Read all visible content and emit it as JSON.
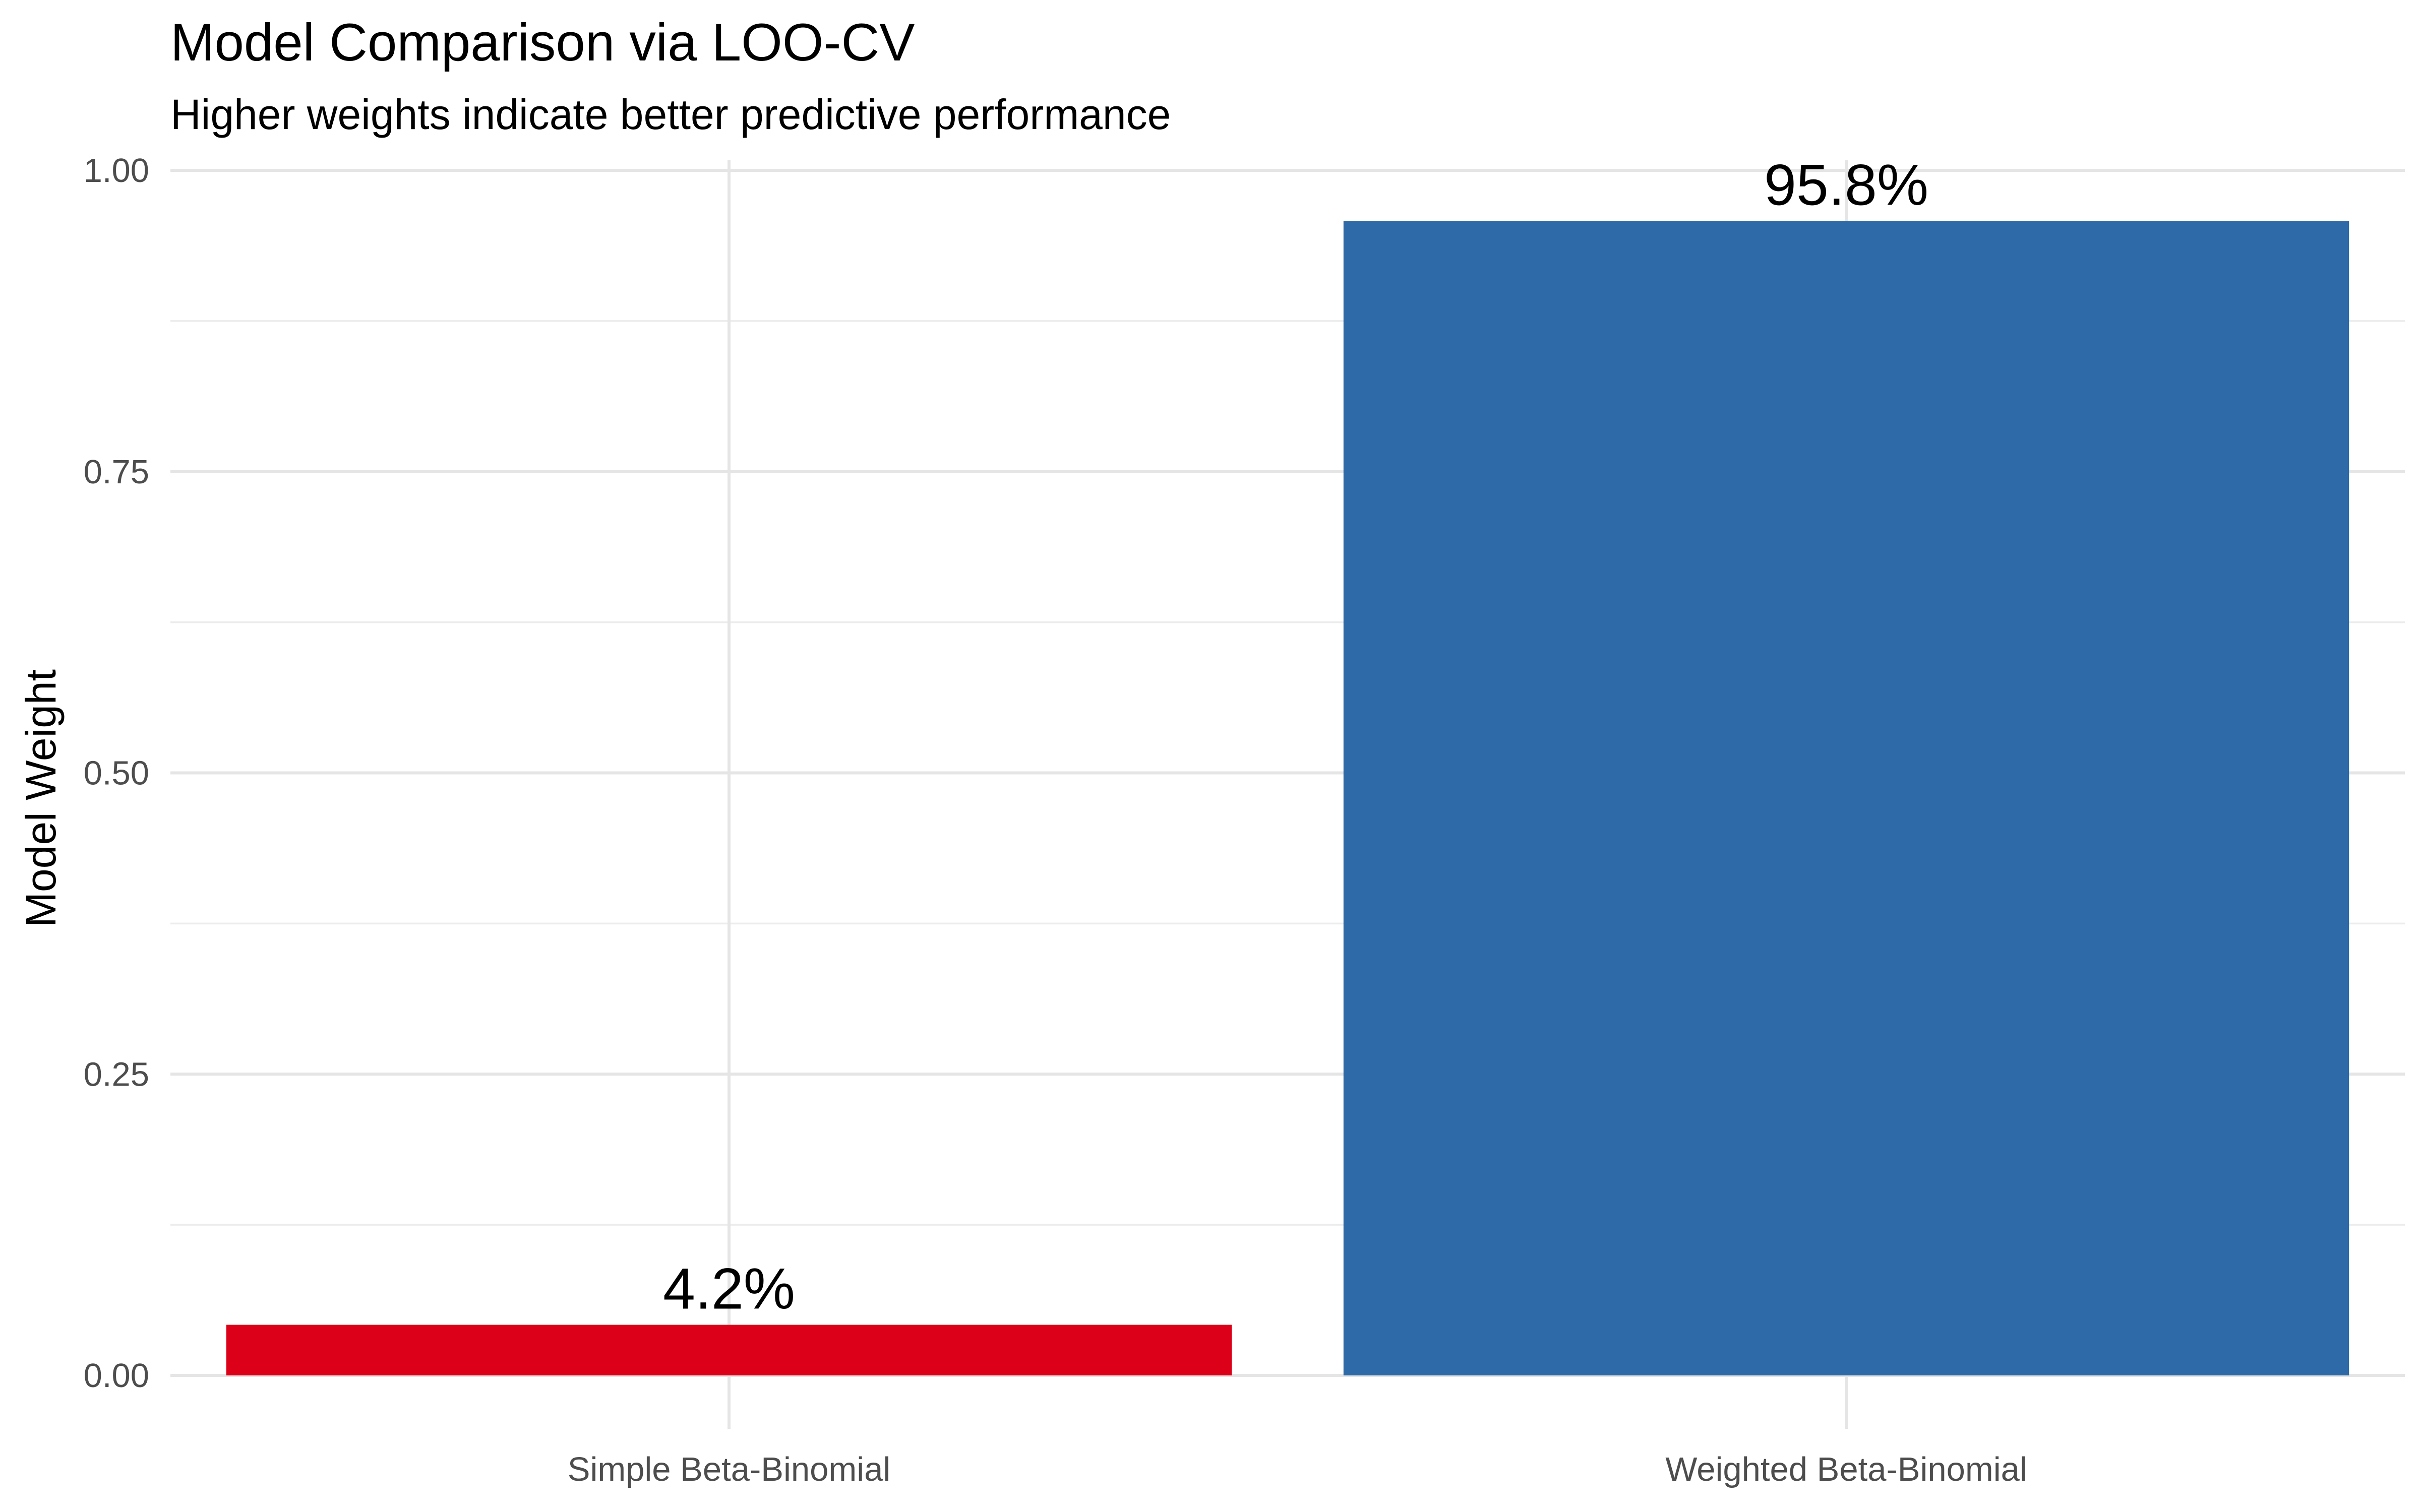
{
  "chart_data": {
    "type": "bar",
    "title": "Model Comparison via LOO-CV",
    "subtitle": "Higher weights indicate better predictive performance",
    "xlabel": "",
    "ylabel": "Model Weight",
    "categories": [
      "Simple Beta-Binomial",
      "Weighted Beta-Binomial"
    ],
    "values": [
      0.042,
      0.958
    ],
    "data_labels": [
      "4.2%",
      "95.8%"
    ],
    "colors": [
      "#dc0019",
      "#2d6aa7"
    ],
    "ylim": [
      0,
      1
    ],
    "yticks": [
      0,
      0.25,
      0.5,
      0.75,
      1
    ],
    "ytick_labels": [
      "0.00",
      "0.25",
      "0.50",
      "0.75",
      "1.00"
    ],
    "grid": true,
    "legend": "none"
  }
}
